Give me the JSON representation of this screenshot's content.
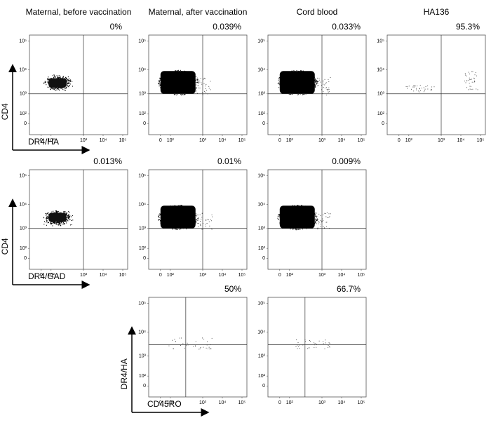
{
  "chart_data": [
    {
      "type": "scatter",
      "title": "Maternal, before vaccination",
      "annotation": "0%",
      "ylabel": "CD4",
      "xlabel": "DR4/HA",
      "gate": {
        "x": 1000,
        "y": 1000
      },
      "xticks": [
        0,
        {
          "value": 100,
          "label": "10²"
        },
        {
          "value": 1000,
          "label": "10³"
        },
        {
          "value": 10000,
          "label": "10⁴"
        },
        {
          "value": 100000,
          "label": "10⁵"
        }
      ],
      "yticks": [
        0,
        {
          "value": 100,
          "label": "10²"
        },
        {
          "value": 1000,
          "label": "10³"
        },
        {
          "value": 10000,
          "label": "10⁴"
        },
        {
          "value": 100000,
          "label": "10⁵"
        }
      ],
      "clusters": [
        {
          "style": "cloud",
          "x": [
            0,
            500
          ],
          "y": [
            1200,
            7000
          ]
        }
      ]
    },
    {
      "type": "scatter",
      "title": "Maternal, after vaccination",
      "annotation": "0.039%",
      "gate": {
        "x": 1000,
        "y": 1000
      },
      "xticks": [
        0,
        {
          "value": 100,
          "label": "10²"
        },
        {
          "value": 1000,
          "label": "10³"
        },
        {
          "value": 10000,
          "label": "10⁴"
        },
        {
          "value": 100000,
          "label": "10⁵"
        }
      ],
      "yticks": [
        0,
        {
          "value": 100,
          "label": "10²"
        },
        {
          "value": 1000,
          "label": "10³"
        },
        {
          "value": 10000,
          "label": "10⁴"
        },
        {
          "value": 100000,
          "label": "10⁵"
        }
      ],
      "clusters": [
        {
          "style": "solid",
          "x": [
            0,
            600
          ],
          "y": [
            1000,
            9000
          ]
        },
        {
          "style": "sparse",
          "x": [
            600,
            3000
          ],
          "y": [
            900,
            5000
          ]
        }
      ]
    },
    {
      "type": "scatter",
      "title": "Cord blood",
      "annotation": "0.033%",
      "gate": {
        "x": 1000,
        "y": 1000
      },
      "xticks": [
        0,
        {
          "value": 100,
          "label": "10²"
        },
        {
          "value": 1000,
          "label": "10³"
        },
        {
          "value": 10000,
          "label": "10⁴"
        },
        {
          "value": 100000,
          "label": "10⁵"
        }
      ],
      "yticks": [
        0,
        {
          "value": 100,
          "label": "10²"
        },
        {
          "value": 1000,
          "label": "10³"
        },
        {
          "value": 10000,
          "label": "10⁴"
        },
        {
          "value": 100000,
          "label": "10⁵"
        }
      ],
      "clusters": [
        {
          "style": "solid",
          "x": [
            0,
            600
          ],
          "y": [
            1000,
            9000
          ]
        },
        {
          "style": "sparse",
          "x": [
            600,
            3000
          ],
          "y": [
            900,
            5000
          ]
        }
      ]
    },
    {
      "type": "scatter",
      "title": "HA136",
      "annotation": "95.3%",
      "gate": {
        "x": 1000,
        "y": 1000
      },
      "xticks": [
        0,
        {
          "value": 100,
          "label": "10²"
        },
        {
          "value": 1000,
          "label": "10³"
        },
        {
          "value": 10000,
          "label": "10⁴"
        },
        {
          "value": 100000,
          "label": "10⁵"
        }
      ],
      "yticks": [
        0,
        {
          "value": 100,
          "label": "10²"
        },
        {
          "value": 1000,
          "label": "10³"
        },
        {
          "value": 10000,
          "label": "10⁴"
        },
        {
          "value": 100000,
          "label": "10⁵"
        }
      ],
      "clusters": [
        {
          "style": "sparse",
          "x": [
            15000,
            70000
          ],
          "y": [
            1500,
            9000
          ]
        },
        {
          "style": "sparse",
          "x": [
            50,
            600
          ],
          "y": [
            1200,
            2500
          ]
        }
      ]
    },
    {
      "type": "scatter",
      "annotation": "0.013%",
      "ylabel": "CD4",
      "xlabel": "DR4/GAD",
      "gate": {
        "x": 1000,
        "y": 1000
      },
      "xticks": [
        0,
        {
          "value": 100,
          "label": "10²"
        },
        {
          "value": 1000,
          "label": "10³"
        },
        {
          "value": 10000,
          "label": "10⁴"
        },
        {
          "value": 100000,
          "label": "10⁵"
        }
      ],
      "yticks": [
        0,
        {
          "value": 100,
          "label": "10²"
        },
        {
          "value": 1000,
          "label": "10³"
        },
        {
          "value": 10000,
          "label": "10⁴"
        },
        {
          "value": 100000,
          "label": "10⁵"
        }
      ],
      "clusters": [
        {
          "style": "cloud",
          "x": [
            0,
            500
          ],
          "y": [
            1200,
            7000
          ]
        }
      ]
    },
    {
      "type": "scatter",
      "annotation": "0.01%",
      "gate": {
        "x": 1000,
        "y": 1000
      },
      "xticks": [
        0,
        {
          "value": 100,
          "label": "10²"
        },
        {
          "value": 1000,
          "label": "10³"
        },
        {
          "value": 10000,
          "label": "10⁴"
        },
        {
          "value": 100000,
          "label": "10⁵"
        }
      ],
      "yticks": [
        0,
        {
          "value": 100,
          "label": "10²"
        },
        {
          "value": 1000,
          "label": "10³"
        },
        {
          "value": 10000,
          "label": "10⁴"
        },
        {
          "value": 100000,
          "label": "10⁵"
        }
      ],
      "clusters": [
        {
          "style": "solid",
          "x": [
            0,
            600
          ],
          "y": [
            1000,
            9000
          ]
        },
        {
          "style": "sparse",
          "x": [
            600,
            3000
          ],
          "y": [
            900,
            5000
          ]
        }
      ]
    },
    {
      "type": "scatter",
      "annotation": "0.009%",
      "gate": {
        "x": 1000,
        "y": 1000
      },
      "xticks": [
        0,
        {
          "value": 100,
          "label": "10²"
        },
        {
          "value": 1000,
          "label": "10³"
        },
        {
          "value": 10000,
          "label": "10⁴"
        },
        {
          "value": 100000,
          "label": "10⁵"
        }
      ],
      "yticks": [
        0,
        {
          "value": 100,
          "label": "10²"
        },
        {
          "value": 1000,
          "label": "10³"
        },
        {
          "value": 10000,
          "label": "10⁴"
        },
        {
          "value": 100000,
          "label": "10⁵"
        }
      ],
      "clusters": [
        {
          "style": "solid",
          "x": [
            0,
            600
          ],
          "y": [
            1000,
            9000
          ]
        },
        {
          "style": "sparse",
          "x": [
            600,
            3000
          ],
          "y": [
            900,
            5000
          ]
        }
      ]
    },
    {
      "type": "scatter",
      "annotation": "50%",
      "ylabel": "DR4/HA",
      "xlabel": "CD45RO",
      "gate": {
        "x": 300,
        "y": 3000
      },
      "xticks": [
        0,
        {
          "value": 100,
          "label": "10²"
        },
        {
          "value": 1000,
          "label": "10³"
        },
        {
          "value": 10000,
          "label": "10⁴"
        },
        {
          "value": 100000,
          "label": "10⁵"
        }
      ],
      "yticks": [
        0,
        {
          "value": 100,
          "label": "10²"
        },
        {
          "value": 1000,
          "label": "10³"
        },
        {
          "value": 10000,
          "label": "10⁴"
        },
        {
          "value": 100000,
          "label": "10⁵"
        }
      ],
      "clusters": [
        {
          "style": "sparse",
          "x": [
            80,
            3000
          ],
          "y": [
            2000,
            6000
          ]
        }
      ]
    },
    {
      "type": "scatter",
      "annotation": "66.7%",
      "gate": {
        "x": 300,
        "y": 3000
      },
      "xticks": [
        0,
        {
          "value": 100,
          "label": "10²"
        },
        {
          "value": 1000,
          "label": "10³"
        },
        {
          "value": 10000,
          "label": "10⁴"
        },
        {
          "value": 100000,
          "label": "10⁵"
        }
      ],
      "yticks": [
        0,
        {
          "value": 100,
          "label": "10²"
        },
        {
          "value": 1000,
          "label": "10³"
        },
        {
          "value": 10000,
          "label": "10⁴"
        },
        {
          "value": 100000,
          "label": "10⁵"
        }
      ],
      "clusters": [
        {
          "style": "sparse",
          "x": [
            150,
            2500
          ],
          "y": [
            2000,
            5000
          ]
        }
      ]
    }
  ]
}
